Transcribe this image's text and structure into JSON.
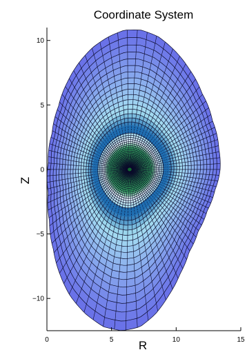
{
  "chart_data": {
    "type": "line",
    "title": "Coordinate System",
    "xlabel": "R",
    "ylabel": "Z",
    "xlim": [
      0,
      15
    ],
    "ylim": [
      -12.5,
      11
    ],
    "x_ticks": [
      0,
      5,
      10,
      15
    ],
    "x_tick_labels": [
      "0",
      "5",
      "10",
      "15"
    ],
    "y_ticks": [
      10,
      5,
      0,
      -5,
      -10
    ],
    "y_tick_labels": [
      "10",
      "5",
      "0",
      "−5",
      "−10"
    ],
    "grid": false,
    "legend": "none",
    "axis": {
      "R0": 7.0,
      "Z0": 0.0
    },
    "boundary": {
      "description": "outer flux surface (approx.)",
      "R": [
        13.4,
        13.3,
        12.8,
        12.0,
        11.0,
        9.8,
        8.6,
        7.3,
        6.0,
        4.8,
        3.6,
        2.5,
        1.6,
        0.9,
        0.4,
        0.1,
        0.1,
        0.2,
        0.5,
        1.0,
        1.8,
        3.0,
        4.4,
        5.8,
        7.2,
        8.4,
        9.4,
        10.3,
        11.0,
        11.7,
        12.4,
        13.0,
        13.4
      ],
      "Z": [
        0.0,
        1.6,
        3.8,
        5.9,
        7.8,
        9.3,
        10.3,
        10.8,
        10.8,
        10.3,
        9.5,
        8.3,
        6.8,
        4.9,
        2.8,
        0.5,
        -1.8,
        -4.0,
        -6.2,
        -8.1,
        -9.8,
        -11.2,
        -12.2,
        -12.5,
        -12.2,
        -11.2,
        -9.8,
        -8.1,
        -6.4,
        -4.8,
        -3.2,
        -1.6,
        0.0
      ]
    },
    "rho": [
      1.0,
      0.97,
      0.94,
      0.91,
      0.88,
      0.85,
      0.82,
      0.79,
      0.76,
      0.73,
      0.7,
      0.67,
      0.64,
      0.61,
      0.58,
      0.55,
      0.52,
      0.49,
      0.47,
      0.45,
      0.43,
      0.41,
      0.39,
      0.37,
      0.35,
      0.33,
      0.31,
      0.29,
      0.27,
      0.25,
      0.23,
      0.21,
      0.19,
      0.17,
      0.15,
      0.13,
      0.11,
      0.09,
      0.07,
      0.05,
      0.03
    ],
    "n_theta": 88,
    "surface_colors": {
      "outer": "#6a72e8",
      "middle": "#a6e0f2",
      "band": "#1f6db0",
      "inner": "#3cc06a",
      "core": "#0e5e2a",
      "grid_line": "#0a0a2a"
    }
  }
}
